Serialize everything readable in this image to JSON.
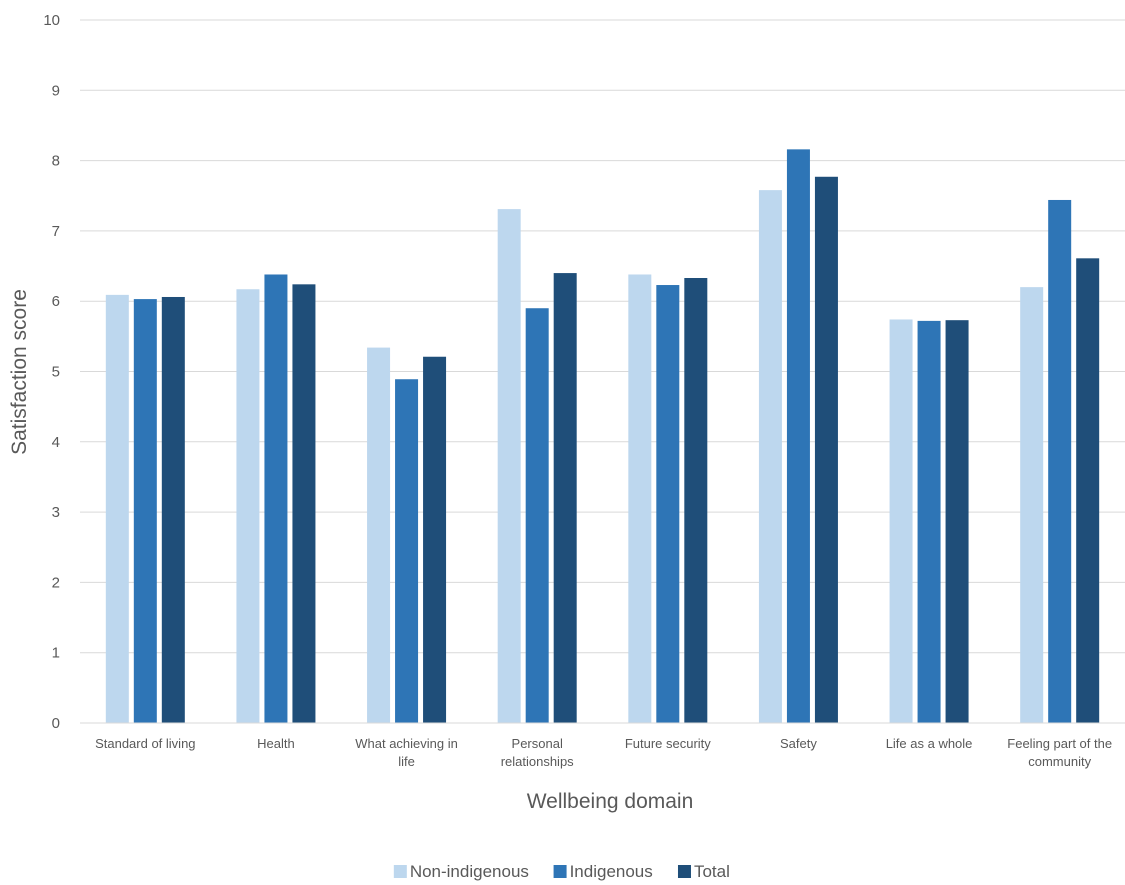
{
  "chart_data": {
    "type": "bar",
    "title": "",
    "xlabel": "Wellbeing domain",
    "ylabel": "Satisfaction score",
    "ylim": [
      0,
      10
    ],
    "yticks": [
      0,
      1,
      2,
      3,
      4,
      5,
      6,
      7,
      8,
      9,
      10
    ],
    "grid": true,
    "legend_position": "bottom",
    "categories": [
      [
        "Standard of living"
      ],
      [
        "Health"
      ],
      [
        "What achieving in",
        "life"
      ],
      [
        "Personal",
        "relationships"
      ],
      [
        "Future security"
      ],
      [
        "Safety"
      ],
      [
        "Life as a whole"
      ],
      [
        "Feeling part of the",
        "community"
      ]
    ],
    "series": [
      {
        "name": "Non-indigenous",
        "color": "#bdd7ee",
        "values": [
          6.09,
          6.17,
          5.34,
          7.31,
          6.38,
          7.58,
          5.74,
          6.2
        ]
      },
      {
        "name": "Indigenous",
        "color": "#2e75b6",
        "values": [
          6.03,
          6.38,
          4.89,
          5.9,
          6.23,
          8.16,
          5.72,
          7.44
        ]
      },
      {
        "name": "Total",
        "color": "#1f4e79",
        "values": [
          6.06,
          6.24,
          5.21,
          6.4,
          6.33,
          7.77,
          5.73,
          6.61
        ]
      }
    ]
  }
}
